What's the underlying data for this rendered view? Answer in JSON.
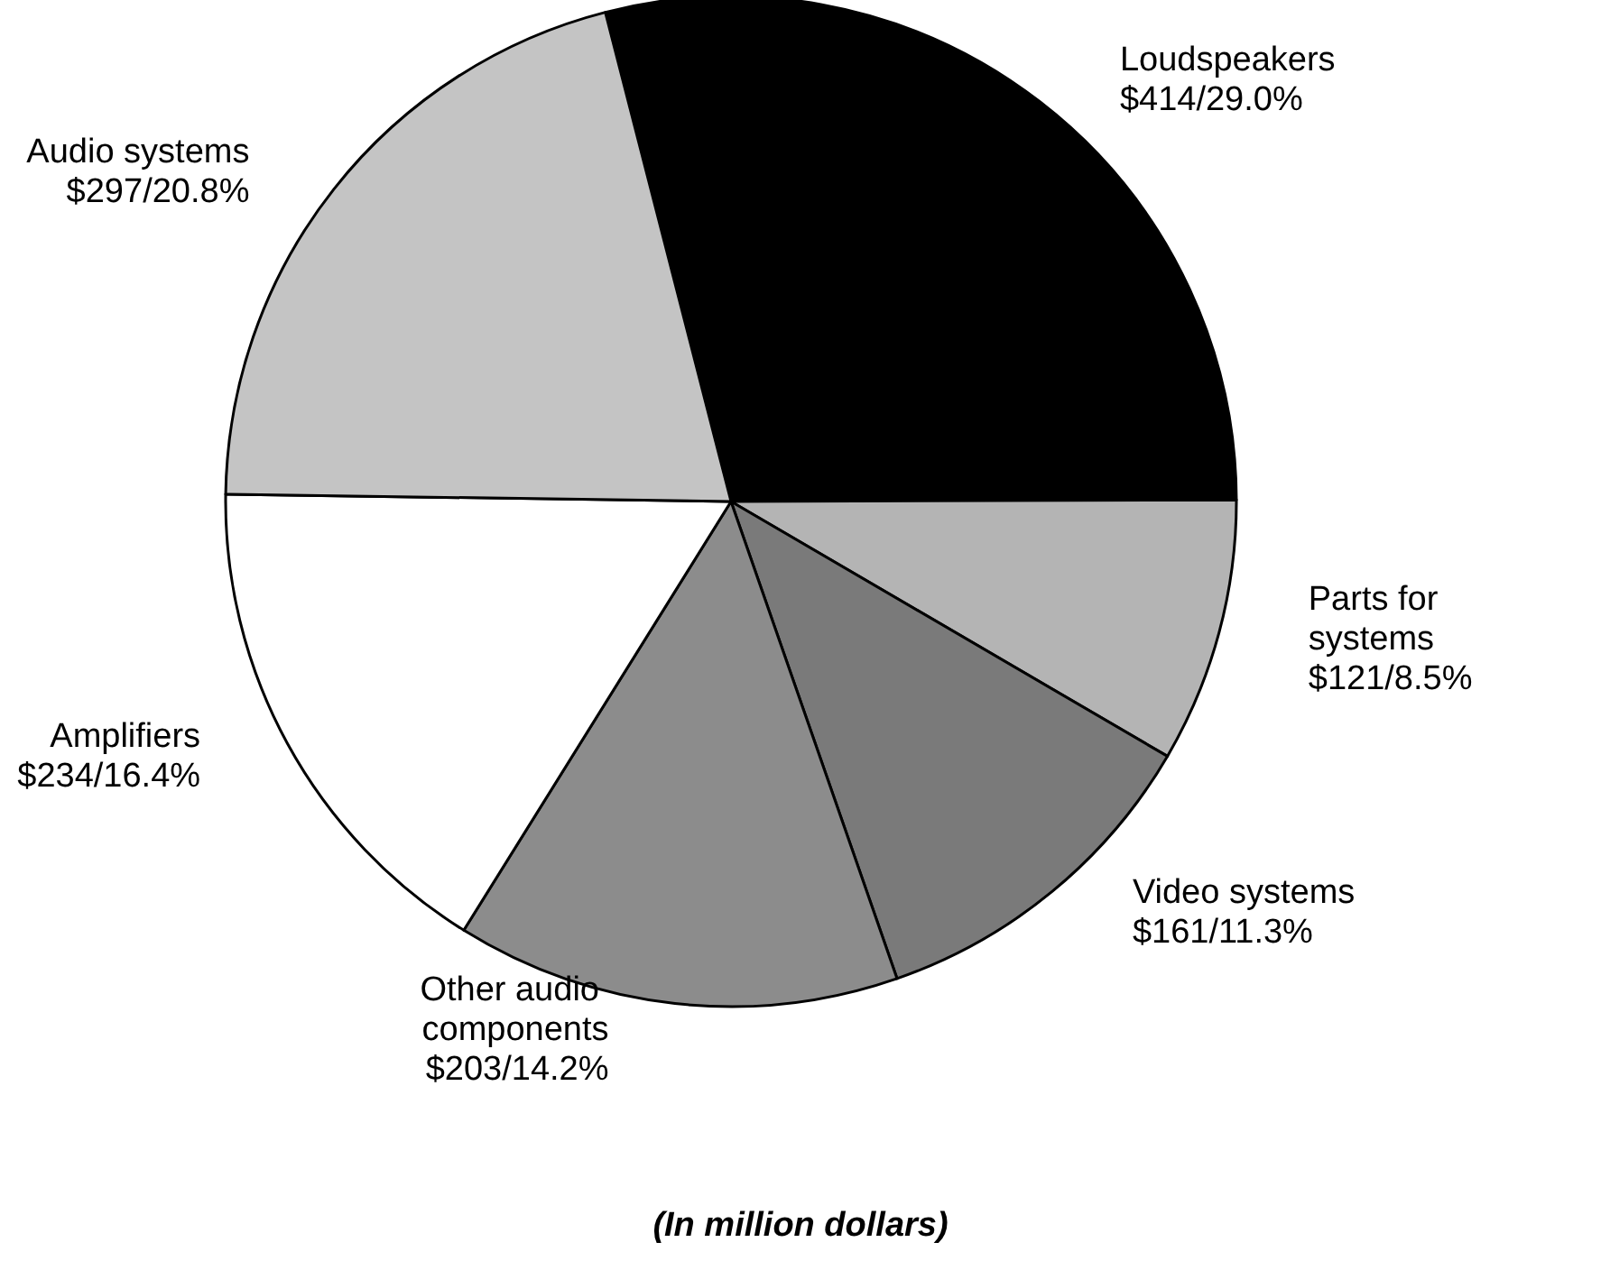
{
  "chart_data": {
    "type": "pie",
    "categories": [
      "Loudspeakers",
      "Parts for systems",
      "Video systems",
      "Other audio components",
      "Amplifiers",
      "Audio systems"
    ],
    "values": [
      414,
      121,
      161,
      203,
      234,
      297
    ],
    "value_labels": [
      "$414/29.0%",
      "$121/8.5%",
      "$161/11.3%",
      "$203/14.2%",
      "$234/16.4%",
      "$297/20.8%"
    ],
    "colors": [
      "#000000",
      "#b4b4b4",
      "#7a7a7a",
      "#8c8c8c",
      "#ffffff",
      "#c4c4c4"
    ],
    "annotations": [
      "(In million dollars)"
    ]
  }
}
